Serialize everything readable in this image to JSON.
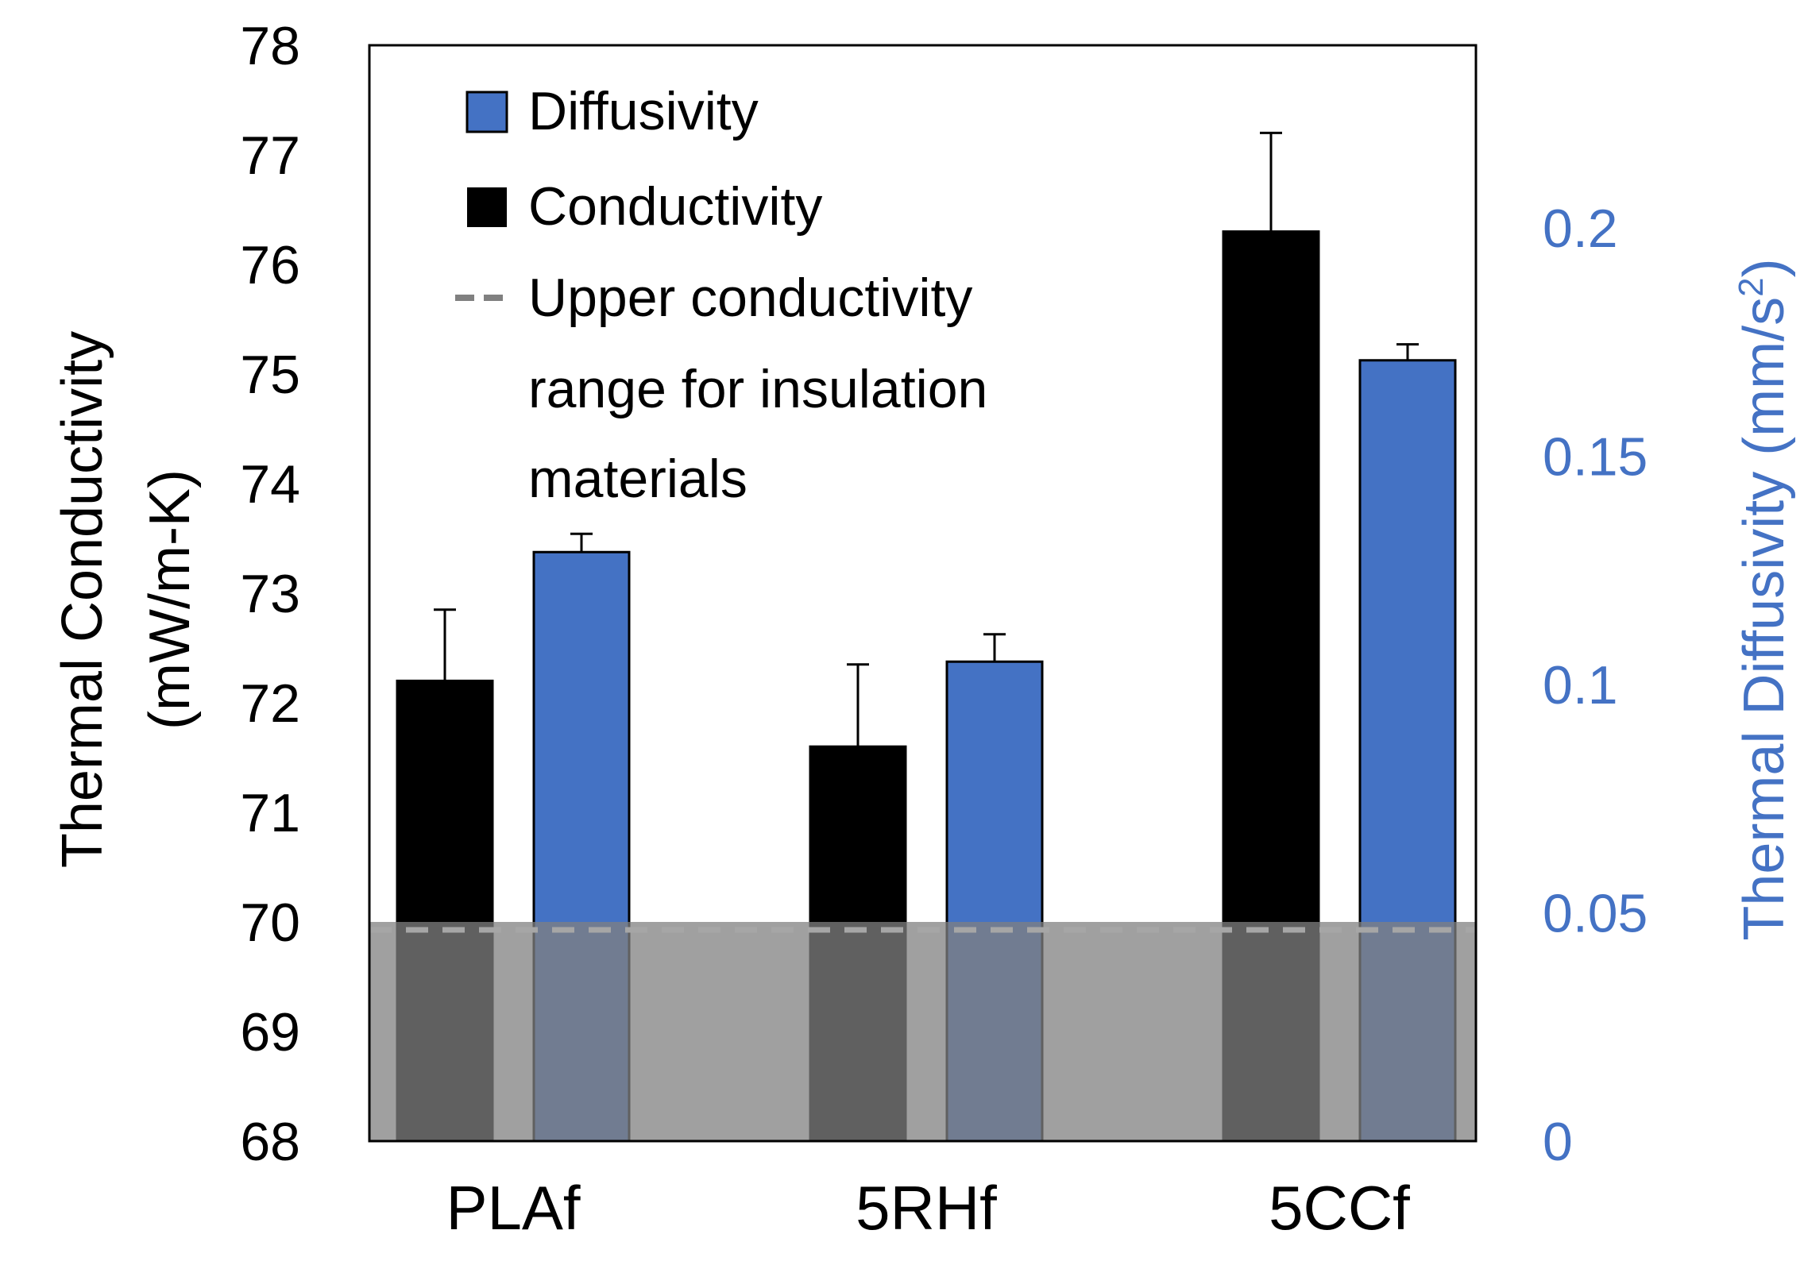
{
  "chart_data": {
    "type": "bar",
    "categories": [
      "PLAf",
      "5RHf",
      "5CCf"
    ],
    "series": [
      {
        "name": "Conductivity",
        "axis": "left",
        "color": "#000000",
        "values": [
          72.2,
          71.6,
          76.3
        ],
        "error_plus": [
          0.65,
          0.75,
          0.9
        ]
      },
      {
        "name": "Diffusivity",
        "axis": "right",
        "color": "#4472c4",
        "values": [
          0.129,
          0.105,
          0.171
        ],
        "error_plus": [
          0.004,
          0.006,
          0.0035
        ]
      }
    ],
    "threshold": {
      "name": "Upper conductivity range for insulation materials",
      "value": 70,
      "band_color": "#808080"
    },
    "left_axis": {
      "title_line1": "Thermal Conductivity",
      "title_line2": "(mW/m-K)",
      "ylim": [
        68,
        78
      ],
      "ticks": [
        "78",
        "77",
        "76",
        "75",
        "74",
        "73",
        "72",
        "71",
        "70",
        "69",
        "68"
      ]
    },
    "right_axis": {
      "title": "Thermal Diffusivity (mm/s",
      "title_sup": "2",
      "title_end": ")",
      "ylim": [
        0,
        0.24
      ],
      "ticks": [
        "0.2",
        "0.15",
        "0.1",
        "0.05",
        "0"
      ]
    },
    "legend": {
      "position": "top-left",
      "diffusivity": "Diffusivity",
      "conductivity": "Conductivity",
      "threshold_line1": "Upper conductivity",
      "threshold_line2": "range for insulation",
      "threshold_line3": "materials"
    }
  }
}
